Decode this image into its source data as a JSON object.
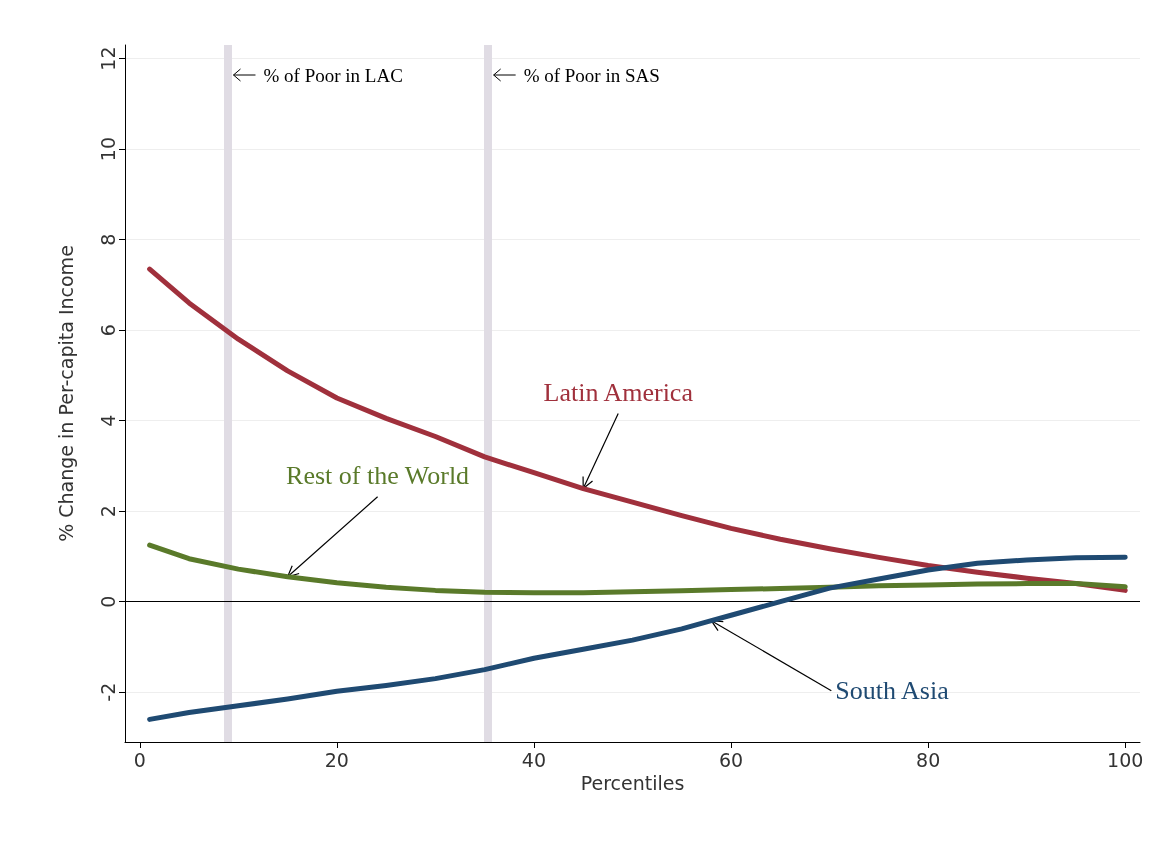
{
  "chart_data": {
    "type": "line",
    "xlabel": "Percentiles",
    "ylabel": "% Change in Per-capita Income",
    "xlim": [
      -1.5,
      101.5
    ],
    "xticks": [
      0,
      20,
      40,
      60,
      80,
      100
    ],
    "ylim": [
      -3.1,
      12.3
    ],
    "yticks": [
      -2,
      0,
      2,
      4,
      6,
      8,
      10,
      12
    ],
    "grid": "y",
    "legend": false,
    "marker": "none",
    "line_style": "solid",
    "series": [
      {
        "name": "Latin America",
        "color": "#a0303c",
        "x": [
          1,
          5,
          10,
          15,
          20,
          25,
          30,
          35,
          40,
          45,
          50,
          55,
          60,
          65,
          70,
          75,
          80,
          85,
          90,
          95,
          100
        ],
        "values": [
          7.35,
          6.6,
          5.8,
          5.1,
          4.5,
          4.05,
          3.65,
          3.2,
          2.85,
          2.5,
          2.2,
          1.9,
          1.62,
          1.38,
          1.17,
          0.98,
          0.8,
          0.65,
          0.52,
          0.4,
          0.25
        ]
      },
      {
        "name": "Rest of the World",
        "color": "#5a7a2a",
        "x": [
          1,
          5,
          10,
          15,
          20,
          25,
          30,
          35,
          40,
          45,
          50,
          55,
          60,
          65,
          70,
          75,
          80,
          85,
          90,
          95,
          100
        ],
        "values": [
          1.25,
          0.95,
          0.72,
          0.55,
          0.42,
          0.32,
          0.25,
          0.21,
          0.2,
          0.2,
          0.22,
          0.24,
          0.27,
          0.29,
          0.32,
          0.35,
          0.37,
          0.39,
          0.4,
          0.4,
          0.33
        ]
      },
      {
        "name": "South Asia",
        "color": "#1f4a72",
        "x": [
          1,
          5,
          10,
          15,
          20,
          25,
          30,
          35,
          40,
          45,
          50,
          55,
          58,
          60,
          65,
          70,
          75,
          80,
          85,
          90,
          95,
          100
        ],
        "values": [
          -2.6,
          -2.45,
          -2.3,
          -2.15,
          -1.98,
          -1.85,
          -1.7,
          -1.5,
          -1.25,
          -1.05,
          -0.85,
          -0.6,
          -0.42,
          -0.3,
          0.0,
          0.3,
          0.5,
          0.7,
          0.85,
          0.92,
          0.97,
          0.98
        ]
      }
    ],
    "ref_lines": [
      {
        "axis": "x",
        "value": 8.9,
        "label": "% of Poor in LAC",
        "color": "#e0dce4"
      },
      {
        "axis": "x",
        "value": 35.3,
        "label": "% of Poor in SAS",
        "color": "#e0dce4"
      },
      {
        "axis": "y",
        "value": 0,
        "label": null,
        "color": "#000000"
      }
    ]
  }
}
